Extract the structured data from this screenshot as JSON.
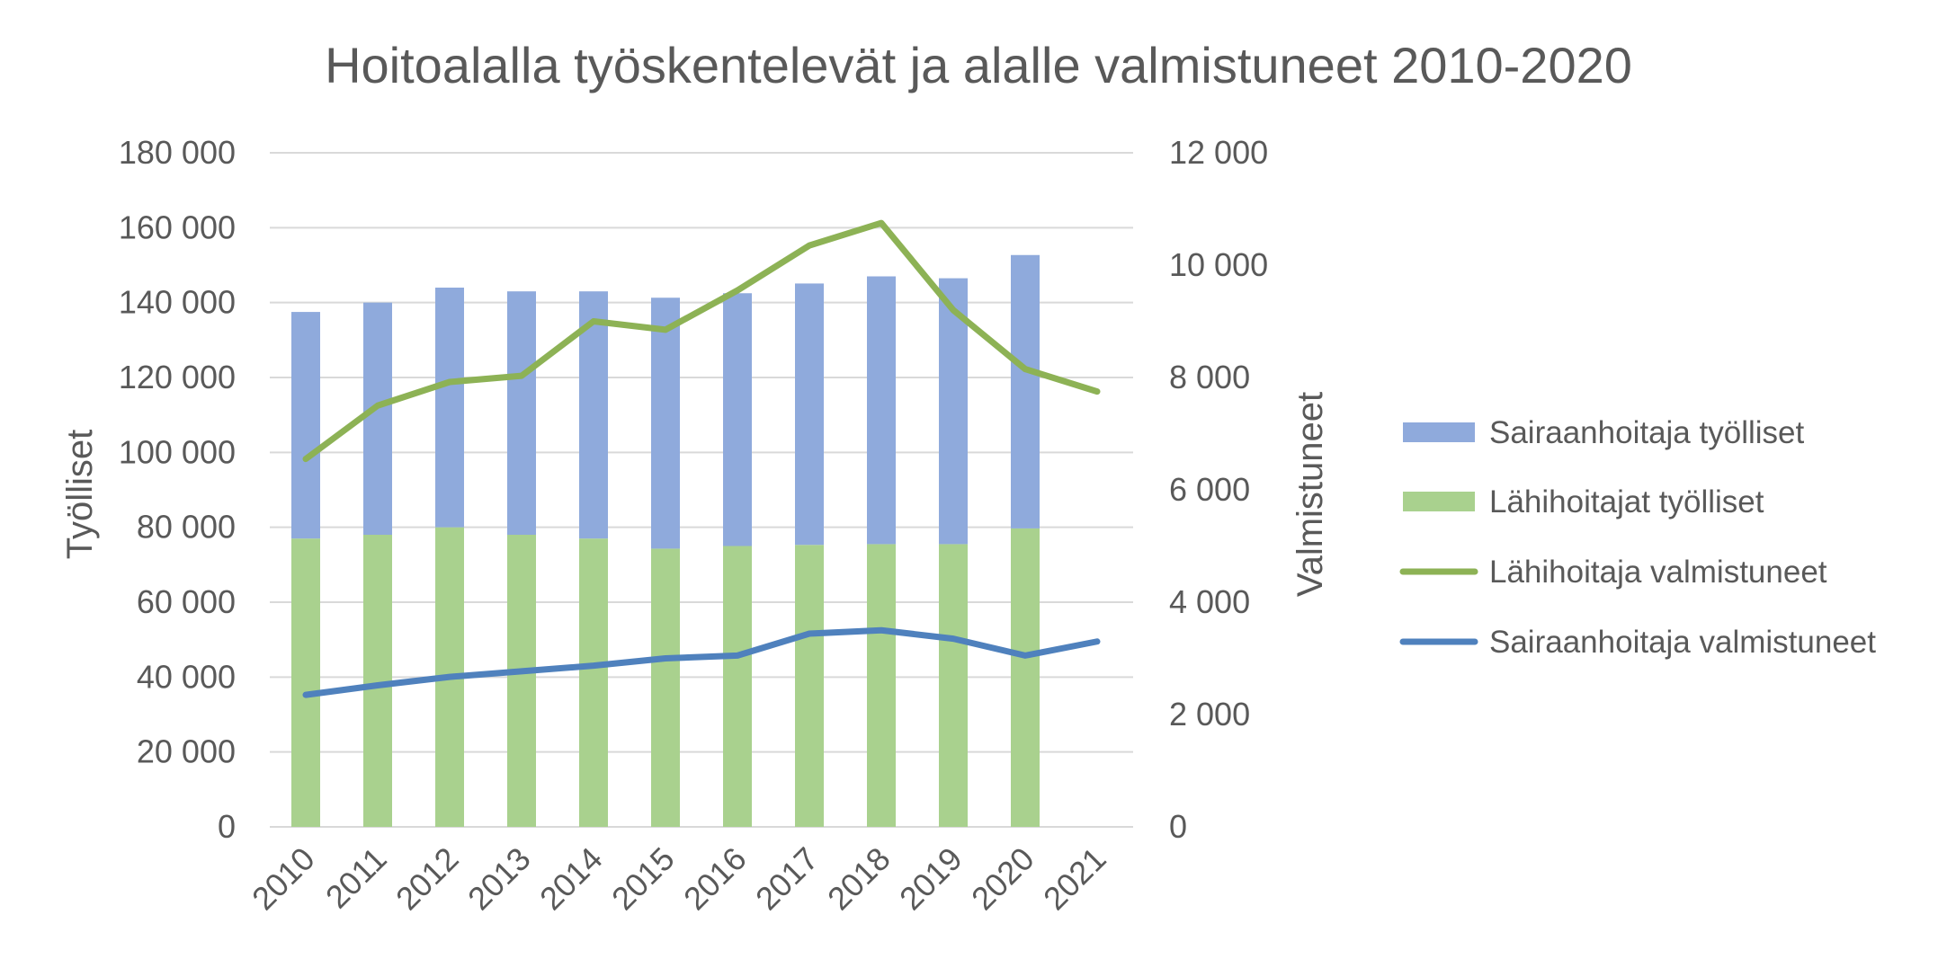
{
  "chart_data": {
    "type": "bar",
    "title": "Hoitoalalla työskentelevät ja alalle valmistuneet 2010-2020",
    "ylabel": "Työlliset",
    "y2label": "Valmistuneet",
    "categories": [
      "2010",
      "2011",
      "2012",
      "2013",
      "2014",
      "2015",
      "2016",
      "2017",
      "2018",
      "2019",
      "2020",
      "2021"
    ],
    "y_ticks": [
      "0",
      "20 000",
      "40 000",
      "60 000",
      "80 000",
      "100 000",
      "120 000",
      "140 000",
      "160 000",
      "180 000"
    ],
    "y2_ticks": [
      "0",
      "2 000",
      "4 000",
      "6 000",
      "8 000",
      "10 000",
      "12 000"
    ],
    "ylim": [
      0,
      180000
    ],
    "y2lim": [
      0,
      12000
    ],
    "grid": true,
    "legend_position": "right",
    "stacked_bars": [
      {
        "name": "Lähihoitajat työlliset",
        "color": "#A9D18E",
        "values": [
          77000,
          78000,
          80000,
          78000,
          77000,
          74300,
          75000,
          75300,
          75500,
          75500,
          79700,
          null
        ]
      },
      {
        "name": "Sairaanhoitaja työlliset",
        "color": "#8FAADC",
        "values": [
          60500,
          62000,
          64000,
          65000,
          66000,
          67000,
          67500,
          69800,
          71500,
          71000,
          73000,
          null
        ]
      }
    ],
    "lines": [
      {
        "name": "Lähihoitaja valmistuneet",
        "color": "#8DB255",
        "axis": "secondary",
        "values": [
          6550,
          7500,
          7920,
          8030,
          9000,
          8850,
          9550,
          10350,
          10750,
          9200,
          8150,
          7750
        ]
      },
      {
        "name": "Sairaanhoitaja valmistuneet",
        "color": "#4F81BD",
        "axis": "secondary",
        "values": [
          2350,
          2520,
          2670,
          2770,
          2870,
          3000,
          3050,
          3440,
          3500,
          3350,
          3050,
          3300
        ]
      }
    ]
  },
  "legend": [
    {
      "label": "Sairaanhoitaja työlliset",
      "kind": "bar",
      "color": "#8FAADC"
    },
    {
      "label": "Lähihoitajat työlliset",
      "kind": "bar",
      "color": "#A9D18E"
    },
    {
      "label": "Lähihoitaja valmistuneet",
      "kind": "line",
      "color": "#8DB255"
    },
    {
      "label": "Sairaanhoitaja valmistuneet",
      "kind": "line",
      "color": "#4F81BD"
    }
  ]
}
